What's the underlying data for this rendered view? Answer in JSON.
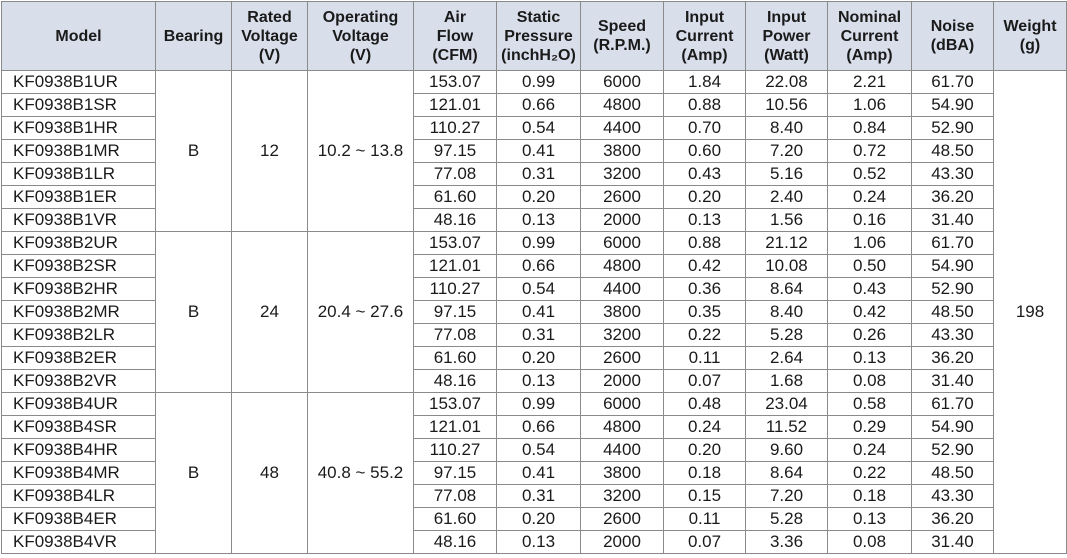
{
  "table": {
    "headers": [
      [
        "Model"
      ],
      [
        "Bearing"
      ],
      [
        "Rated",
        "Voltage",
        "(V)"
      ],
      [
        "Operating",
        "Voltage",
        "(V)"
      ],
      [
        "Air",
        "Flow",
        "(CFM)"
      ],
      [
        "Static",
        "Pressure",
        "(inchH₂O)"
      ],
      [
        "Speed",
        "(R.P.M.)"
      ],
      [
        "Input",
        "Current",
        "(Amp)"
      ],
      [
        "Input",
        "Power",
        "(Watt)"
      ],
      [
        "Nominal",
        "Current",
        "(Amp)"
      ],
      [
        "Noise",
        "(dBA)"
      ],
      [
        "Weight",
        "(g)"
      ]
    ],
    "weight": "198",
    "groups": [
      {
        "bearing": "B",
        "rated_voltage": "12",
        "operating_voltage": "10.2 ~ 13.8",
        "rows": [
          [
            "KF0938B1UR",
            "153.07",
            "0.99",
            "6000",
            "1.84",
            "22.08",
            "2.21",
            "61.70"
          ],
          [
            "KF0938B1SR",
            "121.01",
            "0.66",
            "4800",
            "0.88",
            "10.56",
            "1.06",
            "54.90"
          ],
          [
            "KF0938B1HR",
            "110.27",
            "0.54",
            "4400",
            "0.70",
            "8.40",
            "0.84",
            "52.90"
          ],
          [
            "KF0938B1MR",
            "97.15",
            "0.41",
            "3800",
            "0.60",
            "7.20",
            "0.72",
            "48.50"
          ],
          [
            "KF0938B1LR",
            "77.08",
            "0.31",
            "3200",
            "0.43",
            "5.16",
            "0.52",
            "43.30"
          ],
          [
            "KF0938B1ER",
            "61.60",
            "0.20",
            "2600",
            "0.20",
            "2.40",
            "0.24",
            "36.20"
          ],
          [
            "KF0938B1VR",
            "48.16",
            "0.13",
            "2000",
            "0.13",
            "1.56",
            "0.16",
            "31.40"
          ]
        ]
      },
      {
        "bearing": "B",
        "rated_voltage": "24",
        "operating_voltage": "20.4 ~ 27.6",
        "rows": [
          [
            "KF0938B2UR",
            "153.07",
            "0.99",
            "6000",
            "0.88",
            "21.12",
            "1.06",
            "61.70"
          ],
          [
            "KF0938B2SR",
            "121.01",
            "0.66",
            "4800",
            "0.42",
            "10.08",
            "0.50",
            "54.90"
          ],
          [
            "KF0938B2HR",
            "110.27",
            "0.54",
            "4400",
            "0.36",
            "8.64",
            "0.43",
            "52.90"
          ],
          [
            "KF0938B2MR",
            "97.15",
            "0.41",
            "3800",
            "0.35",
            "8.40",
            "0.42",
            "48.50"
          ],
          [
            "KF0938B2LR",
            "77.08",
            "0.31",
            "3200",
            "0.22",
            "5.28",
            "0.26",
            "43.30"
          ],
          [
            "KF0938B2ER",
            "61.60",
            "0.20",
            "2600",
            "0.11",
            "2.64",
            "0.13",
            "36.20"
          ],
          [
            "KF0938B2VR",
            "48.16",
            "0.13",
            "2000",
            "0.07",
            "1.68",
            "0.08",
            "31.40"
          ]
        ]
      },
      {
        "bearing": "B",
        "rated_voltage": "48",
        "operating_voltage": "40.8 ~ 55.2",
        "rows": [
          [
            "KF0938B4UR",
            "153.07",
            "0.99",
            "6000",
            "0.48",
            "23.04",
            "0.58",
            "61.70"
          ],
          [
            "KF0938B4SR",
            "121.01",
            "0.66",
            "4800",
            "0.24",
            "11.52",
            "0.29",
            "54.90"
          ],
          [
            "KF0938B4HR",
            "110.27",
            "0.54",
            "4400",
            "0.20",
            "9.60",
            "0.24",
            "52.90"
          ],
          [
            "KF0938B4MR",
            "97.15",
            "0.41",
            "3800",
            "0.18",
            "8.64",
            "0.22",
            "48.50"
          ],
          [
            "KF0938B4LR",
            "77.08",
            "0.31",
            "3200",
            "0.15",
            "7.20",
            "0.18",
            "43.30"
          ],
          [
            "KF0938B4ER",
            "61.60",
            "0.20",
            "2600",
            "0.11",
            "5.28",
            "0.13",
            "36.20"
          ],
          [
            "KF0938B4VR",
            "48.16",
            "0.13",
            "2000",
            "0.07",
            "3.36",
            "0.08",
            "31.40"
          ]
        ]
      }
    ]
  }
}
